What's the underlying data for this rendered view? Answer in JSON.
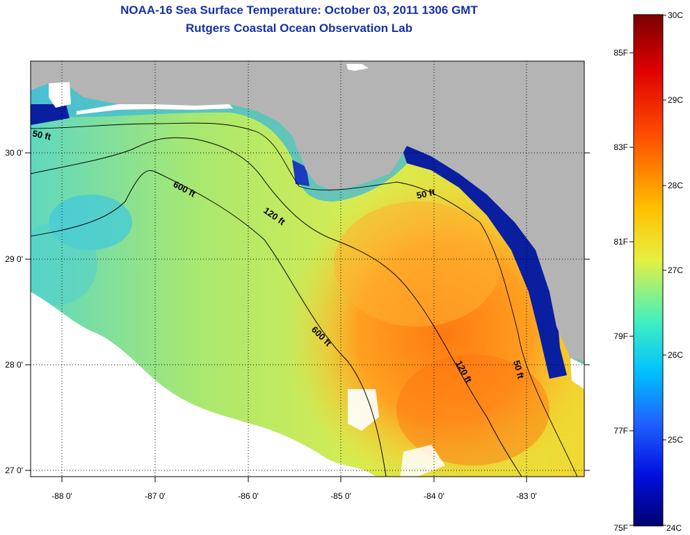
{
  "title": "NOAA-16 Sea Surface Temperature:  October 03, 2011 1306 GMT",
  "subtitle": "Rutgers Coastal Ocean Observation Lab",
  "map": {
    "lon_labels": [
      "-88 0'",
      "-87 0'",
      "-86 0'",
      "-85 0'",
      "-84 0'",
      "-83 0'"
    ],
    "lat_labels": [
      "30 0'",
      "29 0'",
      "28 0'",
      "27 0'"
    ],
    "contour_labels": [
      {
        "id": "c50-west",
        "text": "50 ft"
      },
      {
        "id": "c600-north",
        "text": "600 ft"
      },
      {
        "id": "c120-north",
        "text": "120 ft"
      },
      {
        "id": "c50-east",
        "text": "50 ft"
      },
      {
        "id": "c600-south",
        "text": "600 ft"
      },
      {
        "id": "c120-south",
        "text": "120 ft"
      },
      {
        "id": "c50-south",
        "text": "50 ft"
      }
    ],
    "colors": {
      "land": "#b4b4b4",
      "cloud": "#ffffff",
      "grid": "#000000"
    }
  },
  "colorbar": {
    "celsius_labels": [
      "30C",
      "29C",
      "28C",
      "27C",
      "26C",
      "25C",
      "24C"
    ],
    "fahrenheit_labels": [
      "85F",
      "83F",
      "81F",
      "79F",
      "77F",
      "75F"
    ],
    "colors": [
      "#800000",
      "#ff0000",
      "#ff8000",
      "#ffff00",
      "#80ff80",
      "#00ffff",
      "#0080ff",
      "#0000ff",
      "#000080"
    ]
  }
}
